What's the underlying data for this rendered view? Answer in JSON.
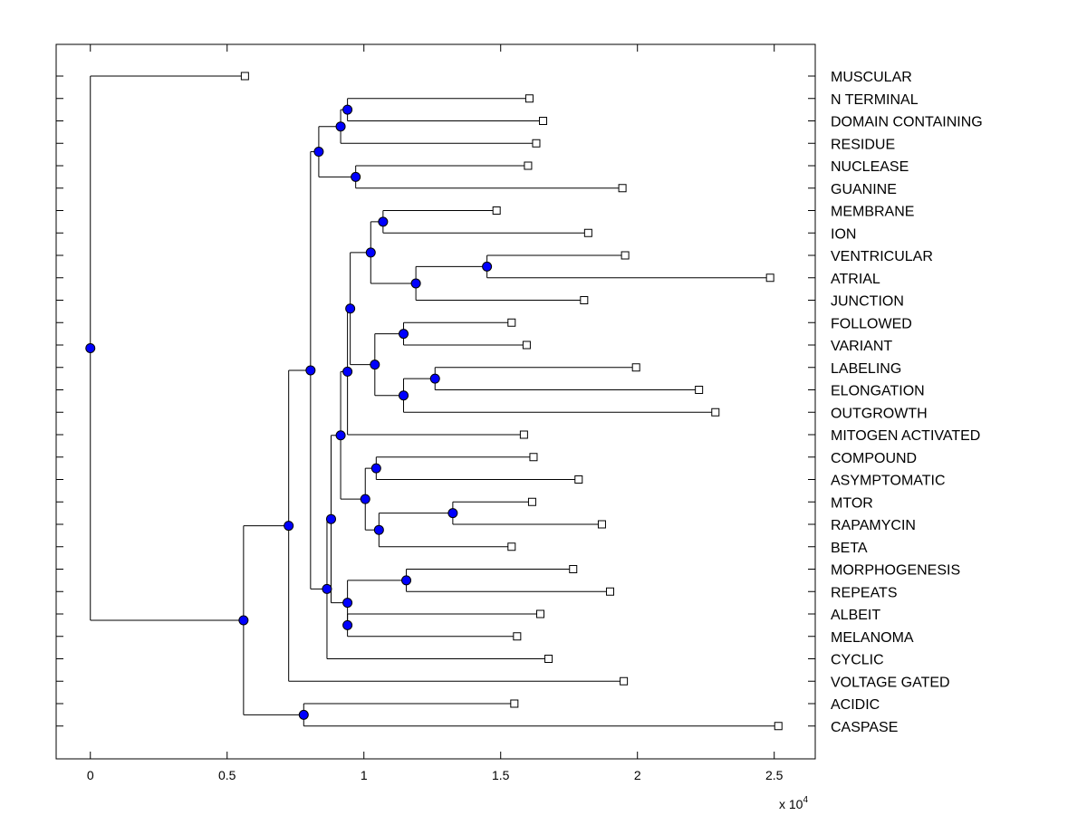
{
  "chart_data": {
    "type": "dendrogram",
    "orientation": "horizontal",
    "xlim": [
      -1250,
      26500
    ],
    "x_ticks": [
      0,
      0.5,
      1,
      1.5,
      2,
      2.5
    ],
    "x_tick_labels": [
      "0",
      "0.5",
      "1",
      "1.5",
      "2",
      "2.5"
    ],
    "x_multiplier_base": "x 10",
    "x_multiplier_exponent": "4",
    "colors": {
      "node_fill": "#0000ff",
      "line": "#000000",
      "leaf_fill": "#ffffff"
    },
    "leaves": [
      {
        "label": "MUSCULAR",
        "x": 5650
      },
      {
        "label": "N TERMINAL",
        "x": 16050
      },
      {
        "label": "DOMAIN CONTAINING",
        "x": 16550
      },
      {
        "label": "RESIDUE",
        "x": 16300
      },
      {
        "label": "NUCLEASE",
        "x": 16000
      },
      {
        "label": "GUANINE",
        "x": 19450
      },
      {
        "label": "MEMBRANE",
        "x": 14850
      },
      {
        "label": "ION",
        "x": 18200
      },
      {
        "label": "VENTRICULAR",
        "x": 19550
      },
      {
        "label": "ATRIAL",
        "x": 24850
      },
      {
        "label": "JUNCTION",
        "x": 18050
      },
      {
        "label": "FOLLOWED",
        "x": 15400
      },
      {
        "label": "VARIANT",
        "x": 15950
      },
      {
        "label": "LABELING",
        "x": 19950
      },
      {
        "label": "ELONGATION",
        "x": 22250
      },
      {
        "label": "OUTGROWTH",
        "x": 22850
      },
      {
        "label": "MITOGEN ACTIVATED",
        "x": 15850
      },
      {
        "label": "COMPOUND",
        "x": 16200
      },
      {
        "label": "ASYMPTOMATIC",
        "x": 17850
      },
      {
        "label": "MTOR",
        "x": 16150
      },
      {
        "label": "RAPAMYCIN",
        "x": 18700
      },
      {
        "label": "BETA",
        "x": 15400
      },
      {
        "label": "MORPHOGENESIS",
        "x": 17650
      },
      {
        "label": "REPEATS",
        "x": 19000
      },
      {
        "label": "ALBEIT",
        "x": 16450
      },
      {
        "label": "MELANOMA",
        "x": 15600
      },
      {
        "label": "CYCLIC",
        "x": 16750
      },
      {
        "label": "VOLTAGE GATED",
        "x": 19500
      },
      {
        "label": "ACIDIC",
        "x": 15500
      },
      {
        "label": "CASPASE",
        "x": 25150
      }
    ],
    "nodes": [
      {
        "id": "n1",
        "x": 0,
        "children": [
          "L0",
          "n2"
        ]
      },
      {
        "id": "n2",
        "x": 5600,
        "children": [
          "n3",
          "n4"
        ]
      },
      {
        "id": "n3",
        "x": 7250,
        "children": [
          "n5",
          "L27"
        ]
      },
      {
        "id": "n4",
        "x": 7800,
        "children": [
          "L28",
          "L29"
        ]
      },
      {
        "id": "n5",
        "x": 8050,
        "children": [
          "n6",
          "n7"
        ]
      },
      {
        "id": "n6",
        "x": 8350,
        "children": [
          "n8",
          "n9"
        ]
      },
      {
        "id": "n7",
        "x": 8650,
        "children": [
          "n10",
          "L26"
        ]
      },
      {
        "id": "n8",
        "x": 9150,
        "children": [
          "n11",
          "L3"
        ]
      },
      {
        "id": "n9",
        "x": 9700,
        "children": [
          "L4",
          "L5"
        ]
      },
      {
        "id": "n11",
        "x": 9400,
        "children": [
          "L1",
          "L2"
        ]
      },
      {
        "id": "n10",
        "x": 8800,
        "children": [
          "n12",
          "n13"
        ]
      },
      {
        "id": "n12",
        "x": 9150,
        "children": [
          "n14",
          "n15"
        ]
      },
      {
        "id": "n13",
        "x": 9400,
        "children": [
          "n16",
          "n17"
        ]
      },
      {
        "id": "n14",
        "x": 9400,
        "children": [
          "n18",
          "L16"
        ]
      },
      {
        "id": "n15",
        "x": 10050,
        "children": [
          "n19",
          "n20"
        ]
      },
      {
        "id": "n16",
        "x": 11550,
        "children": [
          "L22",
          "L23"
        ]
      },
      {
        "id": "n17",
        "x": 9400,
        "children": [
          "L24",
          "L25"
        ]
      },
      {
        "id": "n18",
        "x": 9500,
        "children": [
          "n21",
          "n22"
        ]
      },
      {
        "id": "n19",
        "x": 10450,
        "children": [
          "L17",
          "L18"
        ]
      },
      {
        "id": "n20",
        "x": 10550,
        "children": [
          "n23",
          "L21"
        ]
      },
      {
        "id": "n23",
        "x": 13250,
        "children": [
          "L19",
          "L20"
        ]
      },
      {
        "id": "n21",
        "x": 10250,
        "children": [
          "n24",
          "n25"
        ]
      },
      {
        "id": "n22",
        "x": 10400,
        "children": [
          "n26",
          "n27"
        ]
      },
      {
        "id": "n24",
        "x": 10700,
        "children": [
          "L6",
          "L7"
        ]
      },
      {
        "id": "n25",
        "x": 11900,
        "children": [
          "n28",
          "L10"
        ]
      },
      {
        "id": "n28",
        "x": 14500,
        "children": [
          "L8",
          "L9"
        ]
      },
      {
        "id": "n26",
        "x": 11450,
        "children": [
          "L11",
          "L12"
        ]
      },
      {
        "id": "n27",
        "x": 11450,
        "children": [
          "n29",
          "L15"
        ]
      },
      {
        "id": "n29",
        "x": 12600,
        "children": [
          "L13",
          "L14"
        ]
      }
    ]
  }
}
